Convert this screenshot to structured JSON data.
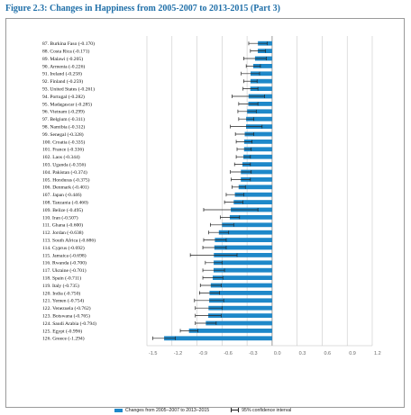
{
  "title": "Figure 2.3: Changes in Happiness from 2005-2007 to 2013-2015 (Part 3)",
  "colors": {
    "bar": "#1e88c9",
    "error": "#222222",
    "title": "#1f6fa8",
    "grid": "#c9c9c9"
  },
  "legend": {
    "bar_label": "Changes from 2005–2007 to 2013–2015",
    "ci_label": "95% confidence interval"
  },
  "chart_data": {
    "type": "bar",
    "orientation": "horizontal",
    "categories": [
      "87. Burkina Faso (-0.170)",
      "88. Costa Rica (-0.171)",
      "89. Malawi (-0.205)",
      "90. Armenia (-0.226)",
      "91. Ireland (-0.258)",
      "92. Finland (-0.259)",
      "93. United States (-0.261)",
      "94. Portugal (-0.282)",
      "95. Madagascar (-0.285)",
      "96. Vietnam (-0.299)",
      "97. Belgium (-0.311)",
      "98. Namibia (-0.312)",
      "99. Senegal (-0.328)",
      "100. Croatia (-0.335)",
      "101. France (-0.336)",
      "102. Laos (-0.344)",
      "103. Uganda (-0.356)",
      "104. Pakistan (-0.374)",
      "105. Honduras (-0.375)",
      "106. Denmark (-0.401)",
      "107. Japan (-0.446)",
      "108. Tanzania (-0.460)",
      "109. Belize (-0.495)",
      "110. Iran (-0.507)",
      "111. Ghana (-0.600)",
      "112. Jordan (-0.638)",
      "113. South Africa (-0.686)",
      "114. Cyprus (-0.692)",
      "115. Jamaica (-0.698)",
      "116. Rwanda (-0.700)",
      "117. Ukraine (-0.701)",
      "118. Spain (-0.711)",
      "119. Italy (-0.735)",
      "120. India (-0.750)",
      "121. Yemen (-0.754)",
      "122. Venezuela (-0.762)",
      "123. Botswana (-0.765)",
      "124. Saudi Arabia (-0.794)",
      "125. Egypt (-0.996)",
      "126. Greece (-1.294)"
    ],
    "values": [
      -0.17,
      -0.171,
      -0.205,
      -0.226,
      -0.258,
      -0.259,
      -0.261,
      -0.282,
      -0.285,
      -0.299,
      -0.311,
      -0.312,
      -0.328,
      -0.335,
      -0.336,
      -0.344,
      -0.356,
      -0.374,
      -0.375,
      -0.401,
      -0.446,
      -0.46,
      -0.495,
      -0.507,
      -0.6,
      -0.638,
      -0.686,
      -0.692,
      -0.698,
      -0.7,
      -0.701,
      -0.711,
      -0.735,
      -0.75,
      -0.754,
      -0.762,
      -0.765,
      -0.794,
      -0.996,
      -1.294
    ],
    "ci_low": [
      -0.28,
      -0.26,
      -0.34,
      -0.31,
      -0.37,
      -0.34,
      -0.35,
      -0.48,
      -0.4,
      -0.41,
      -0.4,
      -0.5,
      -0.44,
      -0.43,
      -0.42,
      -0.43,
      -0.45,
      -0.5,
      -0.49,
      -0.48,
      -0.55,
      -0.57,
      -0.82,
      -0.62,
      -0.74,
      -0.76,
      -0.82,
      -0.83,
      -0.98,
      -0.8,
      -0.83,
      -0.83,
      -0.86,
      -0.87,
      -0.93,
      -0.92,
      -0.92,
      -0.92,
      -1.1,
      -1.43
    ],
    "ci_high": [
      -0.06,
      -0.08,
      -0.07,
      -0.14,
      -0.15,
      -0.18,
      -0.17,
      -0.09,
      -0.17,
      -0.19,
      -0.22,
      -0.12,
      -0.22,
      -0.24,
      -0.25,
      -0.26,
      -0.26,
      -0.25,
      -0.26,
      -0.32,
      -0.34,
      -0.35,
      -0.17,
      -0.39,
      -0.46,
      -0.52,
      -0.55,
      -0.55,
      -0.42,
      -0.6,
      -0.57,
      -0.59,
      -0.61,
      -0.63,
      -0.58,
      -0.6,
      -0.61,
      -0.67,
      -0.89,
      -1.16
    ],
    "xlim": [
      -1.5,
      1.2
    ],
    "xticks": [
      "-1.5",
      "-1.2",
      "-0.9",
      "-0.6",
      "-0.3",
      "0.0",
      "0.3",
      "0.6",
      "0.9",
      "1.2"
    ],
    "grid": true,
    "legend_position": "bottom"
  }
}
